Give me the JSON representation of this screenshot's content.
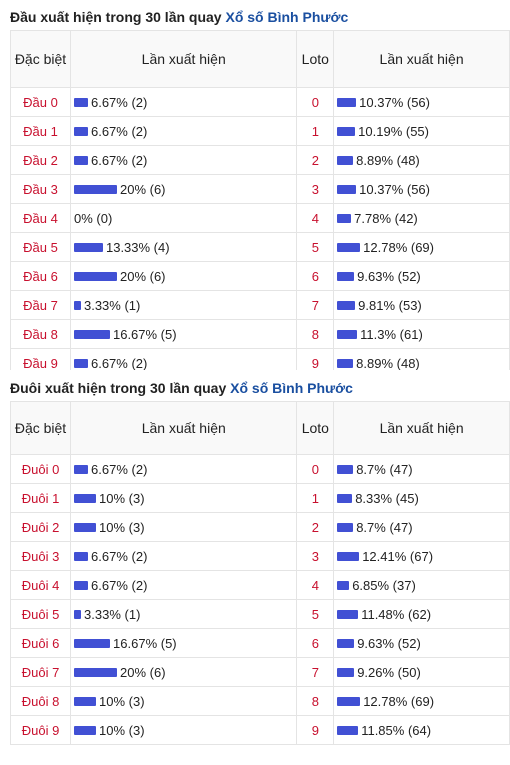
{
  "dau_section": {
    "title_prefix": "Đầu xuất hiện trong 30 lần quay ",
    "title_link": "Xổ số Bình Phước",
    "headers": {
      "special": "Đặc biệt",
      "count": "Lần xuất hiện",
      "loto": "Loto",
      "count2": "Lần xuất hiện"
    },
    "rows": [
      {
        "label": "Đầu 0",
        "pct": 6.67,
        "text": "6.67% (2)",
        "loto": "0",
        "loto_pct": 10.37,
        "loto_text": "10.37% (56)"
      },
      {
        "label": "Đầu 1",
        "pct": 6.67,
        "text": "6.67% (2)",
        "loto": "1",
        "loto_pct": 10.19,
        "loto_text": "10.19% (55)"
      },
      {
        "label": "Đầu 2",
        "pct": 6.67,
        "text": "6.67% (2)",
        "loto": "2",
        "loto_pct": 8.89,
        "loto_text": "8.89% (48)"
      },
      {
        "label": "Đầu 3",
        "pct": 20,
        "text": "20% (6)",
        "loto": "3",
        "loto_pct": 10.37,
        "loto_text": "10.37% (56)"
      },
      {
        "label": "Đầu 4",
        "pct": 0,
        "text": "0% (0)",
        "loto": "4",
        "loto_pct": 7.78,
        "loto_text": "7.78% (42)"
      },
      {
        "label": "Đầu 5",
        "pct": 13.33,
        "text": "13.33% (4)",
        "loto": "5",
        "loto_pct": 12.78,
        "loto_text": "12.78% (69)"
      },
      {
        "label": "Đầu 6",
        "pct": 20,
        "text": "20% (6)",
        "loto": "6",
        "loto_pct": 9.63,
        "loto_text": "9.63% (52)"
      },
      {
        "label": "Đầu 7",
        "pct": 3.33,
        "text": "3.33% (1)",
        "loto": "7",
        "loto_pct": 9.81,
        "loto_text": "9.81% (53)"
      },
      {
        "label": "Đầu 8",
        "pct": 16.67,
        "text": "16.67% (5)",
        "loto": "8",
        "loto_pct": 11.3,
        "loto_text": "11.3% (61)"
      },
      {
        "label": "Đầu 9",
        "pct": 6.67,
        "text": "6.67% (2)",
        "loto": "9",
        "loto_pct": 8.89,
        "loto_text": "8.89% (48)"
      }
    ]
  },
  "duoi_section": {
    "title_prefix": "Đuôi xuất hiện trong 30 lần quay ",
    "title_link": "Xổ số Bình Phước",
    "headers": {
      "special": "Đặc biệt",
      "count": "Lần xuất hiện",
      "loto": "Loto",
      "count2": "Lần xuất hiện"
    },
    "rows": [
      {
        "label": "Đuôi 0",
        "pct": 6.67,
        "text": "6.67% (2)",
        "loto": "0",
        "loto_pct": 8.7,
        "loto_text": "8.7% (47)"
      },
      {
        "label": "Đuôi 1",
        "pct": 10,
        "text": "10% (3)",
        "loto": "1",
        "loto_pct": 8.33,
        "loto_text": "8.33% (45)"
      },
      {
        "label": "Đuôi 2",
        "pct": 10,
        "text": "10% (3)",
        "loto": "2",
        "loto_pct": 8.7,
        "loto_text": "8.7% (47)"
      },
      {
        "label": "Đuôi 3",
        "pct": 6.67,
        "text": "6.67% (2)",
        "loto": "3",
        "loto_pct": 12.41,
        "loto_text": "12.41% (67)"
      },
      {
        "label": "Đuôi 4",
        "pct": 6.67,
        "text": "6.67% (2)",
        "loto": "4",
        "loto_pct": 6.85,
        "loto_text": "6.85% (37)"
      },
      {
        "label": "Đuôi 5",
        "pct": 3.33,
        "text": "3.33% (1)",
        "loto": "5",
        "loto_pct": 11.48,
        "loto_text": "11.48% (62)"
      },
      {
        "label": "Đuôi 6",
        "pct": 16.67,
        "text": "16.67% (5)",
        "loto": "6",
        "loto_pct": 9.63,
        "loto_text": "9.63% (52)"
      },
      {
        "label": "Đuôi 7",
        "pct": 20,
        "text": "20% (6)",
        "loto": "7",
        "loto_pct": 9.26,
        "loto_text": "9.26% (50)"
      },
      {
        "label": "Đuôi 8",
        "pct": 10,
        "text": "10% (3)",
        "loto": "8",
        "loto_pct": 12.78,
        "loto_text": "12.78% (69)"
      },
      {
        "label": "Đuôi 9",
        "pct": 10,
        "text": "10% (3)",
        "loto": "9",
        "loto_pct": 11.85,
        "loto_text": "11.85% (64)"
      }
    ]
  },
  "colors": {
    "bar": "#4150d4",
    "label_red": "#c8102e",
    "link_blue": "#1a4fa0"
  }
}
